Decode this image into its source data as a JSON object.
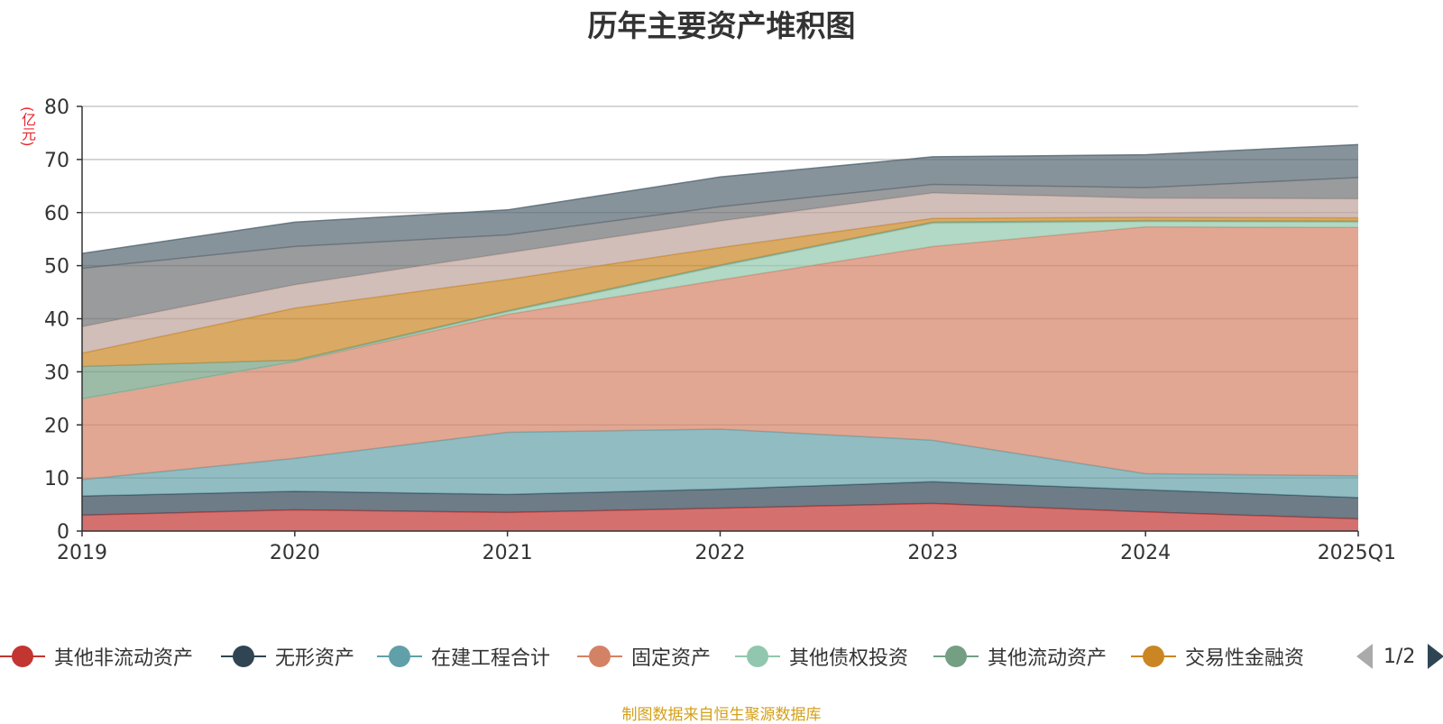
{
  "title": "历年主要资产堆积图",
  "unit": "(亿元)",
  "footer": "制图数据来自恒生聚源数据库",
  "pager": {
    "text": "1/2"
  },
  "chart_data": {
    "type": "area",
    "stacked": true,
    "categories": [
      "2019",
      "2020",
      "2021",
      "2022",
      "2023",
      "2024",
      "2025Q1"
    ],
    "ylim": [
      0,
      80
    ],
    "yticks": [
      0,
      10,
      20,
      30,
      40,
      50,
      60,
      70,
      80
    ],
    "grid": true,
    "legend_position": "bottom",
    "series": [
      {
        "name": "其他非流动资产",
        "color": "#c23531",
        "values": [
          3.0,
          4.0,
          3.5,
          4.3,
          5.2,
          3.6,
          2.3
        ]
      },
      {
        "name": "无形资产",
        "color": "#2f4554",
        "values": [
          3.6,
          3.5,
          3.4,
          3.6,
          4.1,
          4.2,
          4.0
        ]
      },
      {
        "name": "在建工程合计",
        "color": "#61a0a8",
        "values": [
          3.1,
          6.2,
          11.7,
          11.3,
          7.8,
          3.0,
          4.1
        ]
      },
      {
        "name": "固定资产",
        "color": "#d48265",
        "values": [
          15.2,
          18.2,
          22.2,
          28.1,
          36.5,
          46.5,
          46.8
        ]
      },
      {
        "name": "其他债权投资",
        "color": "#91c7ae",
        "values": [
          0.0,
          0.0,
          0.5,
          2.6,
          4.4,
          1.0,
          1.0
        ]
      },
      {
        "name": "其他流动资产",
        "color": "#749f83",
        "values": [
          6.1,
          0.3,
          0.2,
          0.2,
          0.2,
          0.2,
          0.2
        ]
      },
      {
        "name": "交易性金融资",
        "color": "#ca8622",
        "values": [
          2.5,
          9.8,
          5.9,
          3.3,
          0.7,
          0.6,
          0.6
        ]
      },
      {
        "name": "",
        "color": "#bda29a",
        "values": [
          5.0,
          4.4,
          5.0,
          5.0,
          4.8,
          3.6,
          3.6
        ]
      },
      {
        "name": "",
        "color": "#6e7074",
        "values": [
          11.0,
          7.2,
          3.4,
          2.7,
          1.6,
          2.0,
          4.0
        ]
      },
      {
        "name": "",
        "color": "#546570",
        "values": [
          2.8,
          4.6,
          4.7,
          5.6,
          5.2,
          6.2,
          6.2
        ]
      }
    ]
  }
}
